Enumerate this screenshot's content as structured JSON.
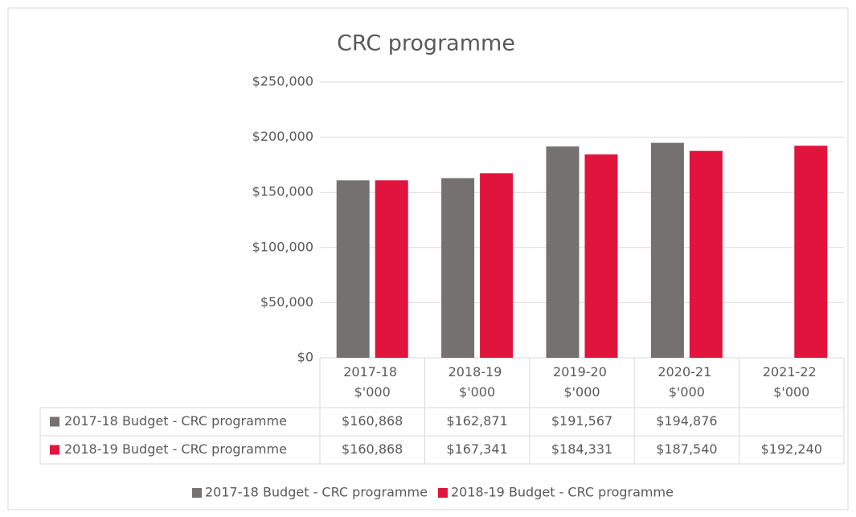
{
  "chart_data": {
    "type": "bar",
    "title": "CRC programme",
    "categories": [
      "2017-18 $'000",
      "2018-19 $'000",
      "2019-20 $'000",
      "2020-21 $'000",
      "2021-22 $'000"
    ],
    "series": [
      {
        "name": "2017-18 Budget - CRC programme",
        "color": "#767171",
        "values": [
          160868,
          162871,
          191567,
          194876,
          null
        ],
        "value_labels": [
          "$160,868",
          "$162,871",
          "$191,567",
          "$194,876",
          null
        ]
      },
      {
        "name": "2018-19 Budget - CRC programme",
        "color": "#e0143c",
        "values": [
          160868,
          167341,
          184331,
          187540,
          192240
        ],
        "value_labels": [
          "$160,868",
          "$167,341",
          "$184,331",
          "$187,540",
          "$192,240"
        ]
      }
    ],
    "ylim": [
      0,
      250000
    ],
    "yticks": [
      {
        "value": 0,
        "label": "$0"
      },
      {
        "value": 50000,
        "label": "$50,000"
      },
      {
        "value": 100000,
        "label": "$100,000"
      },
      {
        "value": 150000,
        "label": "$150,000"
      },
      {
        "value": 200000,
        "label": "$200,000"
      },
      {
        "value": 250000,
        "label": "$250,000"
      }
    ],
    "grid": true,
    "legend": "bottom"
  }
}
